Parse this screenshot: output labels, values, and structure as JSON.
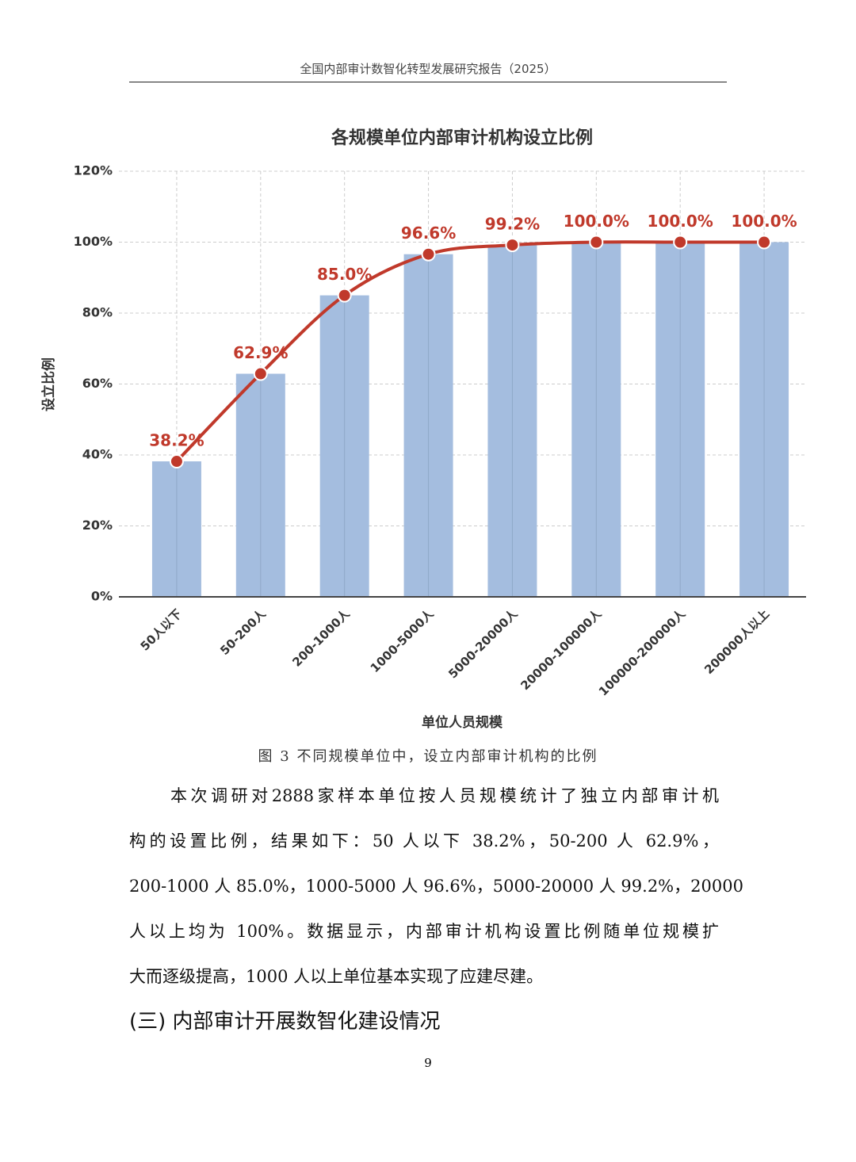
{
  "header": "全国内部审计数智化转型发展研究报告（2025）",
  "chart_data": {
    "type": "bar",
    "title": "各规模单位内部审计机构设立比例",
    "x_label": "单位人员规模",
    "y_label": "设立比例",
    "categories": [
      "50人以下",
      "50-200人",
      "200-1000人",
      "1000-5000人",
      "5000-20000人",
      "20000-100000人",
      "100000-200000人",
      "200000人以上"
    ],
    "values": [
      38.2,
      62.9,
      85.0,
      96.6,
      99.2,
      100,
      100,
      100
    ],
    "value_labels": [
      "38.2%",
      "62.9%",
      "85.0%",
      "96.6%",
      "99.2%",
      "100.0%",
      "100.0%",
      "100.0%"
    ],
    "color": "#a4bddf",
    "line_color": "#c0392b",
    "ylim": [
      0,
      120
    ],
    "yticks": [
      {
        "value": 0,
        "label": "0%"
      },
      {
        "value": 20,
        "label": "20%"
      },
      {
        "value": 40,
        "label": "40%"
      },
      {
        "value": 60,
        "label": "60%"
      },
      {
        "value": 80,
        "label": "80%"
      },
      {
        "value": 100,
        "label": "100%"
      },
      {
        "value": 120,
        "label": "120%"
      }
    ],
    "grid": true
  },
  "caption": "图 3  不同规模单位中，设立内部审计机构的比例",
  "paragraph_lines": [
    "本次调研对2888家样本单位按人员规模统计了独立内部审计机",
    "构的设置比例，结果如下：50 人以下 38.2%，50-200 人 62.9%，",
    "200-1000 人 85.0%，1000-5000 人 96.6%，5000-20000 人 99.2%，20000",
    "人以上均为 100%。数据显示，内部审计机构设置比例随单位规模扩",
    "大而逐级提高，1000 人以上单位基本实现了应建尽建。"
  ],
  "section_heading": "(三) 内部审计开展数智化建设情况",
  "page_number": "9"
}
